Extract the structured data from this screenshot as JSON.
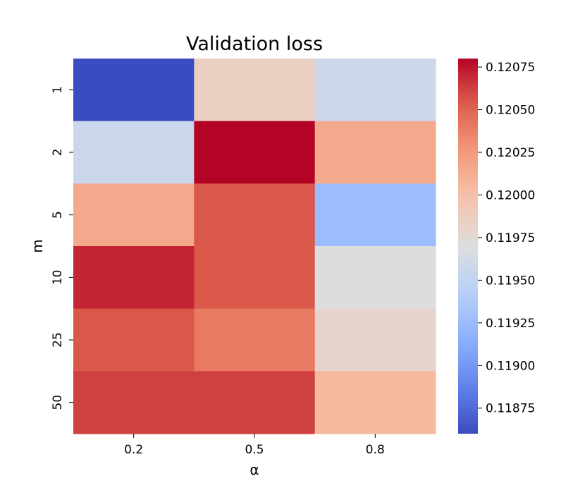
{
  "chart_data": {
    "type": "heatmap",
    "title": "Validation loss",
    "xlabel": "α",
    "ylabel": "m",
    "x_categories": [
      "0.2",
      "0.5",
      "0.8"
    ],
    "y_categories": [
      "1",
      "2",
      "5",
      "10",
      "25",
      "50"
    ],
    "values": [
      [
        0.1186,
        0.11985,
        0.11958
      ],
      [
        0.11956,
        0.1208,
        0.12015
      ],
      [
        0.12015,
        0.12055,
        0.11925
      ],
      [
        0.1207,
        0.12055,
        0.1197
      ],
      [
        0.12055,
        0.1204,
        0.1198
      ],
      [
        0.12062,
        0.12062,
        0.12005
      ]
    ],
    "colormap": "coolwarm",
    "vmin": 0.1186,
    "vmax": 0.1208,
    "colorbar": {
      "ticks": [
        0.11875,
        0.119,
        0.11925,
        0.1195,
        0.11975,
        0.12,
        0.12025,
        0.1205,
        0.12075
      ],
      "tick_labels": [
        "0.11875",
        "0.11900",
        "0.11925",
        "0.11950",
        "0.11975",
        "0.12000",
        "0.12025",
        "0.12050",
        "0.12075"
      ]
    },
    "colors": {
      "cold": "#3b4cc0",
      "neutral": "#dddddd",
      "hot": "#b40426"
    }
  }
}
